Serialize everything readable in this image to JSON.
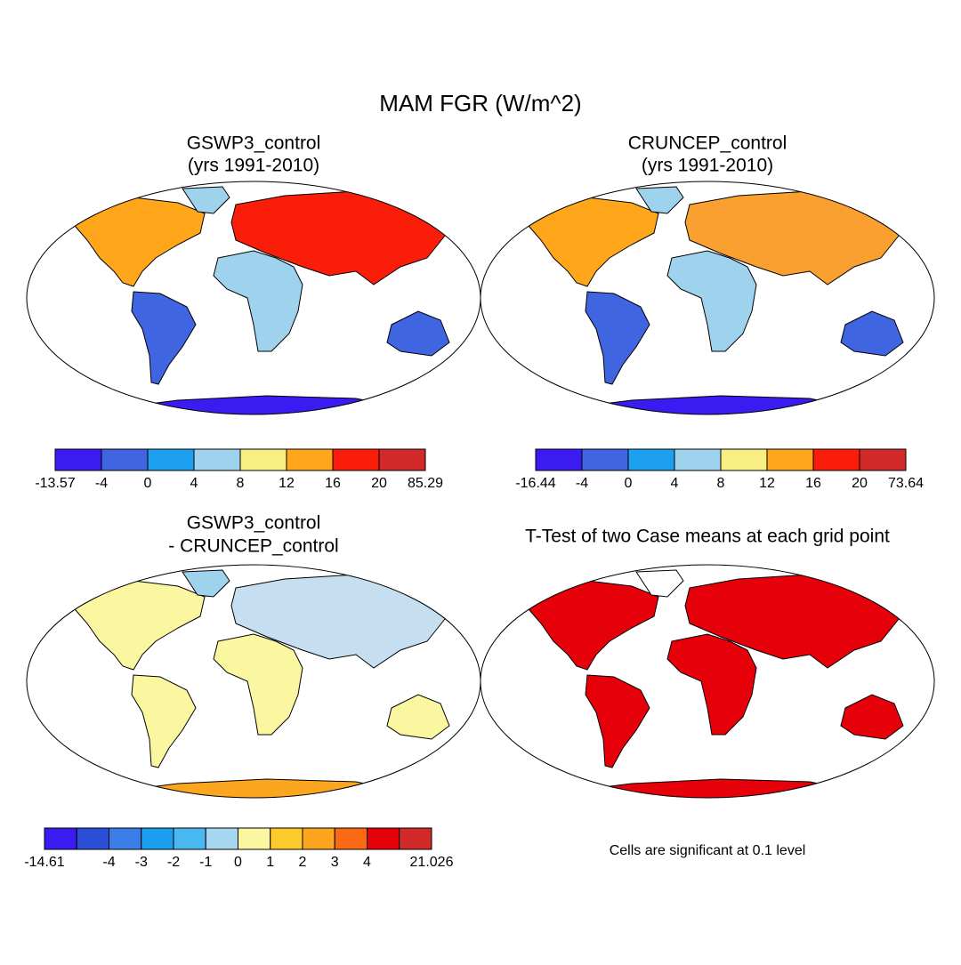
{
  "title": "MAM FGR (W/m^2)",
  "panels": [
    {
      "title": [
        "GSWP3_control",
        "(yrs 1991-2010)"
      ],
      "colorbar": {
        "colors": [
          "#3a1cf2",
          "#3f65e0",
          "#1ea0f0",
          "#9fd2ec",
          "#f9ee82",
          "#ffa61a",
          "#fa1e0a",
          "#d22a2a"
        ],
        "labels": [
          -13.57,
          -4,
          0,
          4,
          8,
          12,
          16,
          20,
          85.29
        ]
      }
    },
    {
      "title": [
        "CRUNCEP_control",
        "(yrs 1991-2010)"
      ],
      "colorbar": {
        "colors": [
          "#3a1cf2",
          "#3f65e0",
          "#1ea0f0",
          "#9fd2ec",
          "#f9ee82",
          "#ffa61a",
          "#fa1e0a",
          "#d22a2a"
        ],
        "labels": [
          -16.44,
          -4,
          0,
          4,
          8,
          12,
          16,
          20,
          73.64
        ]
      }
    },
    {
      "title": [
        "GSWP3_control",
        "- CRUNCEP_control"
      ],
      "colorbar": {
        "colors": [
          "#3a1cf2",
          "#2a4fd6",
          "#3c7ee8",
          "#1a9ef0",
          "#4ab8f0",
          "#a6d6f0",
          "#fbf6a0",
          "#fcca2a",
          "#fca51e",
          "#fa6a14",
          "#e5000a",
          "#d22a2a"
        ],
        "labels": [
          -14.61,
          null,
          -4,
          -3,
          -2,
          -1,
          0,
          1,
          2,
          3,
          4,
          null,
          21.026
        ]
      }
    },
    {
      "title": [
        "T-Test of two Case means at each grid point"
      ],
      "note": "Cells are significant at 0.1 level"
    }
  ]
}
